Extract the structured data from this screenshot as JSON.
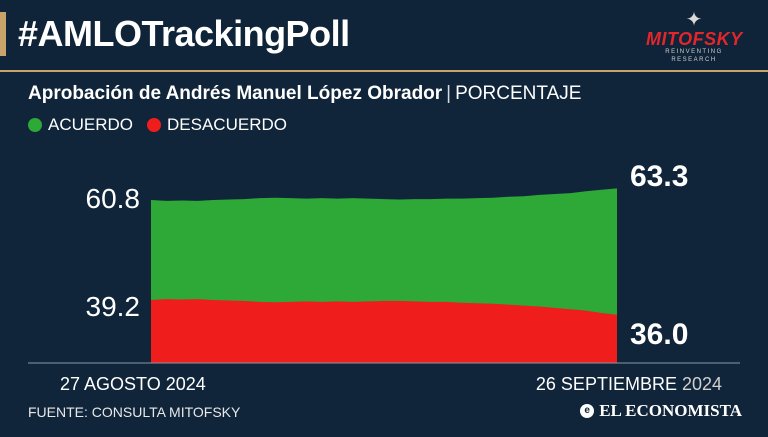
{
  "header": {
    "title": "#AMLOTrackingPoll",
    "logo": {
      "brand": "MITOFSKY",
      "tagline": "REINVENTING RESEARCH",
      "icon": "eagle-wing-icon"
    }
  },
  "subtitle": {
    "main": "Aprobación de Andrés Manuel López Obrador",
    "separator": "|",
    "unit": "PORCENTAJE"
  },
  "legend": [
    {
      "label": "ACUERDO",
      "color": "#2ea836"
    },
    {
      "label": "DESACUERDO",
      "color": "#f01d1d"
    }
  ],
  "footer": {
    "source": "FUENTE: CONSULTA MITOFSKY",
    "publisher": "EL ECONOMISTA",
    "publisher_icon": "el-economista-logo-icon"
  },
  "chart_data": {
    "type": "area",
    "x_start_label": "27 AGOSTO 2024",
    "x_end_label_day": "26 SEPTIEMBRE",
    "x_end_label_year": "2024",
    "start_values": {
      "acuerdo": "60.8",
      "desacuerdo": "39.2"
    },
    "end_values": {
      "acuerdo": "63.3",
      "desacuerdo": "36.0"
    },
    "ylim": [
      0,
      100
    ],
    "series": [
      {
        "name": "ACUERDO",
        "color": "#2ea836",
        "values": [
          60.8,
          60.6,
          60.7,
          60.6,
          60.8,
          60.9,
          61.0,
          61.2,
          61.3,
          61.2,
          61.1,
          61.2,
          61.1,
          61.2,
          61.1,
          61.0,
          60.9,
          61.0,
          61.0,
          61.1,
          61.1,
          61.2,
          61.3,
          61.5,
          61.6,
          61.9,
          62.1,
          62.3,
          62.7,
          63.0,
          63.3
        ]
      },
      {
        "name": "DESACUERDO",
        "color": "#f01d1d",
        "values": [
          39.2,
          39.4,
          39.3,
          39.4,
          39.2,
          39.1,
          39.0,
          38.8,
          38.7,
          38.8,
          38.9,
          38.8,
          38.9,
          38.8,
          38.9,
          39.0,
          39.0,
          38.9,
          38.8,
          38.8,
          38.6,
          38.5,
          38.4,
          38.2,
          38.0,
          37.8,
          37.5,
          37.2,
          36.9,
          36.4,
          36.0
        ]
      }
    ]
  }
}
